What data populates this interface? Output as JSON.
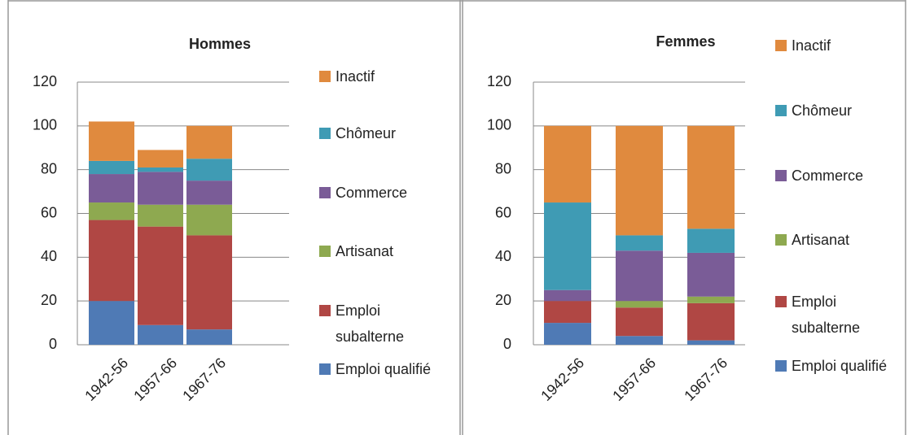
{
  "chart_data": [
    {
      "type": "stacked_bar",
      "title": "Hommes",
      "categories": [
        "1942-56",
        "1957-66",
        "1967-76"
      ],
      "series": [
        {
          "name": "Emploi qualifié",
          "color": "#4f7ab5",
          "values": [
            20,
            9,
            7
          ]
        },
        {
          "name": "Emploi subalterne",
          "color": "#b04744",
          "values": [
            37,
            45,
            43
          ]
        },
        {
          "name": "Artisanat",
          "color": "#8ea950",
          "values": [
            8,
            10,
            14
          ]
        },
        {
          "name": "Commerce",
          "color": "#7a5c97",
          "values": [
            13,
            15,
            11
          ]
        },
        {
          "name": "Chômeur",
          "color": "#3f9bb4",
          "values": [
            6,
            2,
            10
          ]
        },
        {
          "name": "Inactif",
          "color": "#e08a3e",
          "values": [
            18,
            8,
            15
          ]
        }
      ],
      "ylim": [
        0,
        120
      ],
      "yticks": [
        0,
        20,
        40,
        60,
        80,
        100,
        120
      ],
      "grid": true
    },
    {
      "type": "stacked_bar",
      "title": "Femmes",
      "categories": [
        "1942-56",
        "1957-66",
        "1967-76"
      ],
      "series": [
        {
          "name": "Emploi qualifié",
          "color": "#4f7ab5",
          "values": [
            10,
            4,
            2
          ]
        },
        {
          "name": "Emploi subalterne",
          "color": "#b04744",
          "values": [
            10,
            13,
            17
          ]
        },
        {
          "name": "Artisanat",
          "color": "#8ea950",
          "values": [
            0,
            3,
            3
          ]
        },
        {
          "name": "Commerce",
          "color": "#7a5c97",
          "values": [
            5,
            23,
            20
          ]
        },
        {
          "name": "Chômeur",
          "color": "#3f9bb4",
          "values": [
            40,
            7,
            11
          ]
        },
        {
          "name": "Inactif",
          "color": "#e08a3e",
          "values": [
            35,
            50,
            47
          ]
        }
      ],
      "ylim": [
        0,
        120
      ],
      "yticks": [
        0,
        20,
        40,
        60,
        80,
        100,
        120
      ],
      "grid": true
    }
  ]
}
